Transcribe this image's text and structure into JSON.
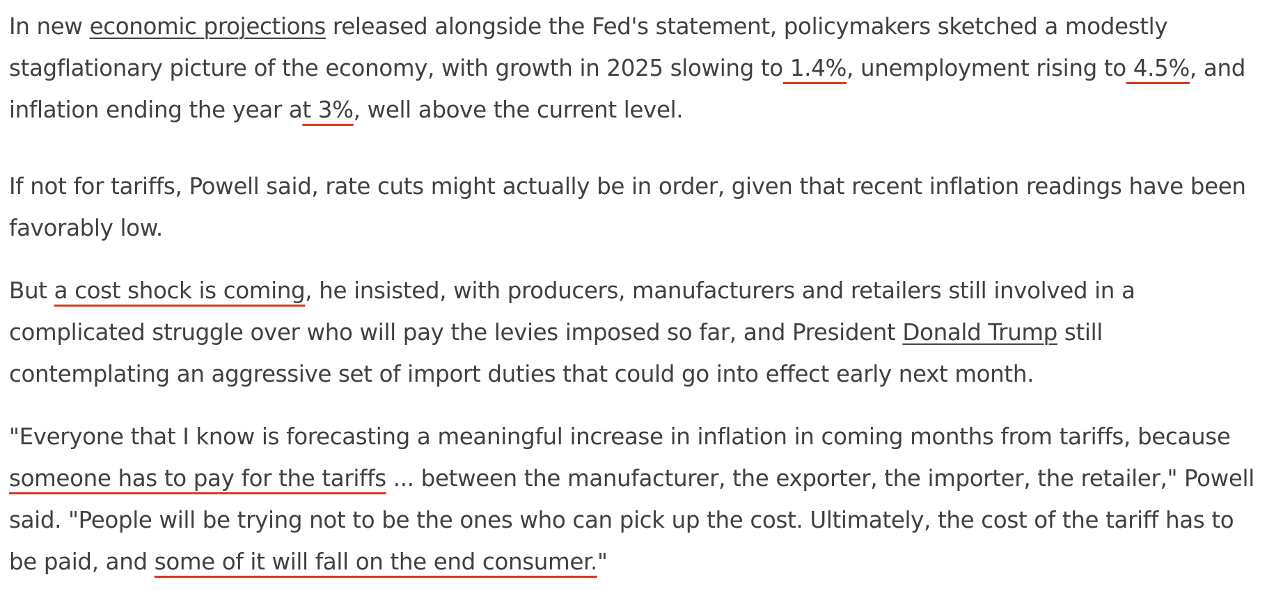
{
  "article": {
    "paragraphs": [
      {
        "segments": [
          {
            "type": "text",
            "text": "In new "
          },
          {
            "type": "link",
            "text": "economic projections"
          },
          {
            "type": "text",
            "text": " released alongside the Fed's statement, policymakers sketched a modestly stagflationary picture of the economy, with growth in 2025 slowing to"
          },
          {
            "type": "highlight",
            "text": " 1.4%"
          },
          {
            "type": "text",
            "text": ", unemployment rising to"
          },
          {
            "type": "highlight",
            "text": " 4.5%"
          },
          {
            "type": "text",
            "text": ", and inflation ending the year a"
          },
          {
            "type": "highlight",
            "text": "t 3%"
          },
          {
            "type": "text",
            "text": ", well above the current level."
          }
        ]
      },
      {
        "segments": [
          {
            "type": "text",
            "text": "If not for tariffs, Powell said, rate cuts might actually be in order, given that recent inflation readings have been favorably low."
          }
        ]
      },
      {
        "segments": [
          {
            "type": "text",
            "text": "But "
          },
          {
            "type": "highlight",
            "text": "a cost shock is coming"
          },
          {
            "type": "text",
            "text": ", he insisted, with producers, manufacturers and retailers still involved in a complicated struggle over who will pay the levies imposed so far, and President "
          },
          {
            "type": "link",
            "text": "Donald Trump"
          },
          {
            "type": "text",
            "text": " still contemplating an aggressive set of import duties that could go into effect early next month."
          }
        ]
      },
      {
        "segments": [
          {
            "type": "text",
            "text": "\"Everyone that I know is forecasting a meaningful increase in inflation in coming months from tariffs, because "
          },
          {
            "type": "highlight",
            "text": "someone has to pay for the tariffs"
          },
          {
            "type": "text",
            "text": " ... between the manufacturer, the exporter, the importer, the retailer,\" Powell said. \"People will be trying not to be the ones who can pick up the cost. Ultimately, the cost of the tariff has to be paid, and "
          },
          {
            "type": "highlight",
            "text": "some of it will fall on the end consumer."
          },
          {
            "type": "text",
            "text": "\""
          }
        ]
      }
    ],
    "colors": {
      "text": "#404040",
      "highlight_underline": "#d9391c",
      "link_underline": "#404040"
    }
  }
}
